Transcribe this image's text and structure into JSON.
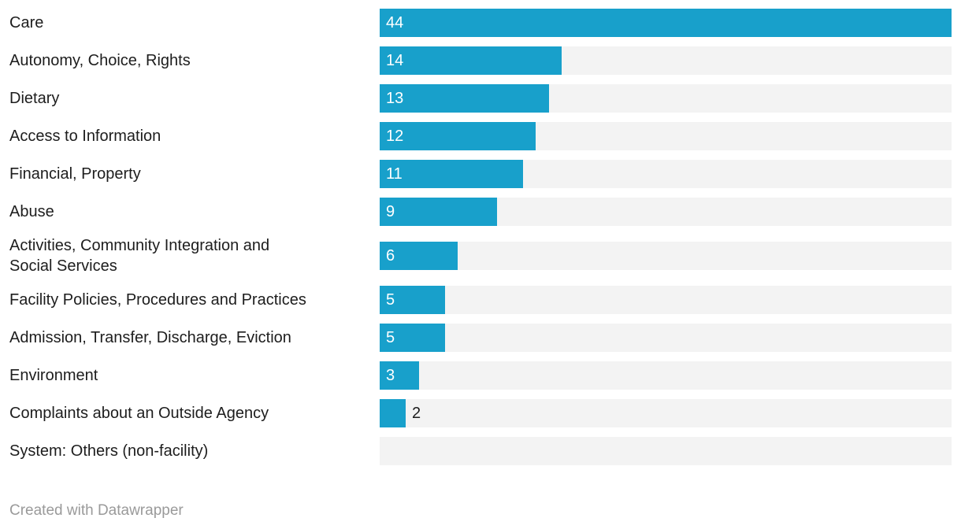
{
  "colors": {
    "bar": "#18a0cb",
    "track": "#f3f3f3",
    "label": "#1d1d1d",
    "value_inside": "#ffffff",
    "value_outside": "#1d1d1d",
    "footer_text": "#9a9a9a",
    "background": "#ffffff"
  },
  "chart_data": {
    "type": "bar",
    "orientation": "horizontal",
    "title": "",
    "xlabel": "",
    "ylabel": "",
    "xlim": [
      0,
      44
    ],
    "max": 44,
    "grid": false,
    "legend": false,
    "value_label_style": "inside bar start, white; outside right of bar when bar too short; omitted when value is 0",
    "categories": [
      "Care",
      "Autonomy, Choice, Rights",
      "Dietary",
      "Access to Information",
      "Financial, Property",
      "Abuse",
      "Activities, Community Integration and\nSocial Services",
      "Facility Policies, Procedures and Practices",
      "Admission, Transfer, Discharge, Eviction",
      "Environment",
      "Complaints about an Outside Agency",
      "System: Others (non-facility)"
    ],
    "values": [
      44,
      14,
      13,
      12,
      11,
      9,
      6,
      5,
      5,
      3,
      2,
      0
    ]
  },
  "footer": {
    "credit": "Created with Datawrapper"
  }
}
